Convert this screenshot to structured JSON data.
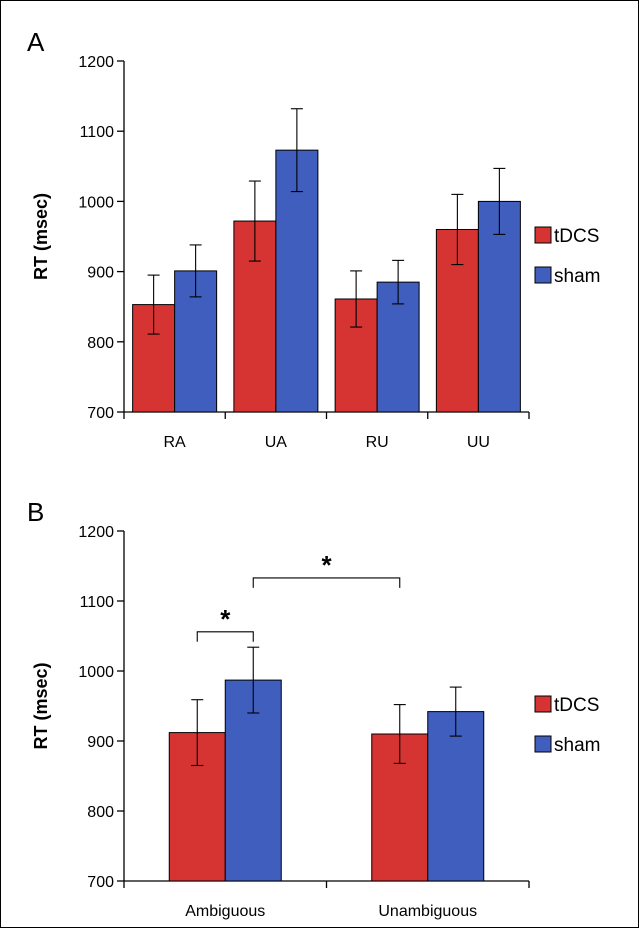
{
  "chart_data": [
    {
      "type": "bar",
      "panel_label": "A",
      "categories": [
        "RA",
        "UA",
        "RU",
        "UU"
      ],
      "series": [
        {
          "name": "tDCS",
          "color": "#d63333",
          "values": [
            853,
            972,
            861,
            960
          ],
          "errors": [
            42,
            57,
            40,
            50
          ]
        },
        {
          "name": "sham",
          "color": "#3f5ebd",
          "values": [
            901,
            1073,
            885,
            1000
          ],
          "errors": [
            37,
            59,
            31,
            47
          ]
        }
      ],
      "ylabel": "RT (msec)",
      "xlabel": "",
      "ylim": [
        700,
        1200
      ],
      "yticks": [
        700,
        800,
        900,
        1000,
        1100,
        1200
      ],
      "grid": false,
      "legend_position": "right",
      "significance": []
    },
    {
      "type": "bar",
      "panel_label": "B",
      "categories": [
        "Ambiguous",
        "Unambiguous"
      ],
      "series": [
        {
          "name": "tDCS",
          "color": "#d63333",
          "values": [
            912,
            910
          ],
          "errors": [
            47,
            42
          ]
        },
        {
          "name": "sham",
          "color": "#3f5ebd",
          "values": [
            987,
            942
          ],
          "errors": [
            47,
            35
          ]
        }
      ],
      "ylabel": "RT (msec)",
      "xlabel": "",
      "ylim": [
        700,
        1200
      ],
      "yticks": [
        700,
        800,
        900,
        1000,
        1100,
        1200
      ],
      "grid": false,
      "legend_position": "right",
      "significance": [
        {
          "label": "*",
          "from": [
            0,
            0
          ],
          "to": [
            0,
            1
          ],
          "level": 1056
        },
        {
          "label": "*",
          "from": [
            0,
            1
          ],
          "to": [
            1,
            0
          ],
          "level": 1133
        }
      ]
    }
  ]
}
